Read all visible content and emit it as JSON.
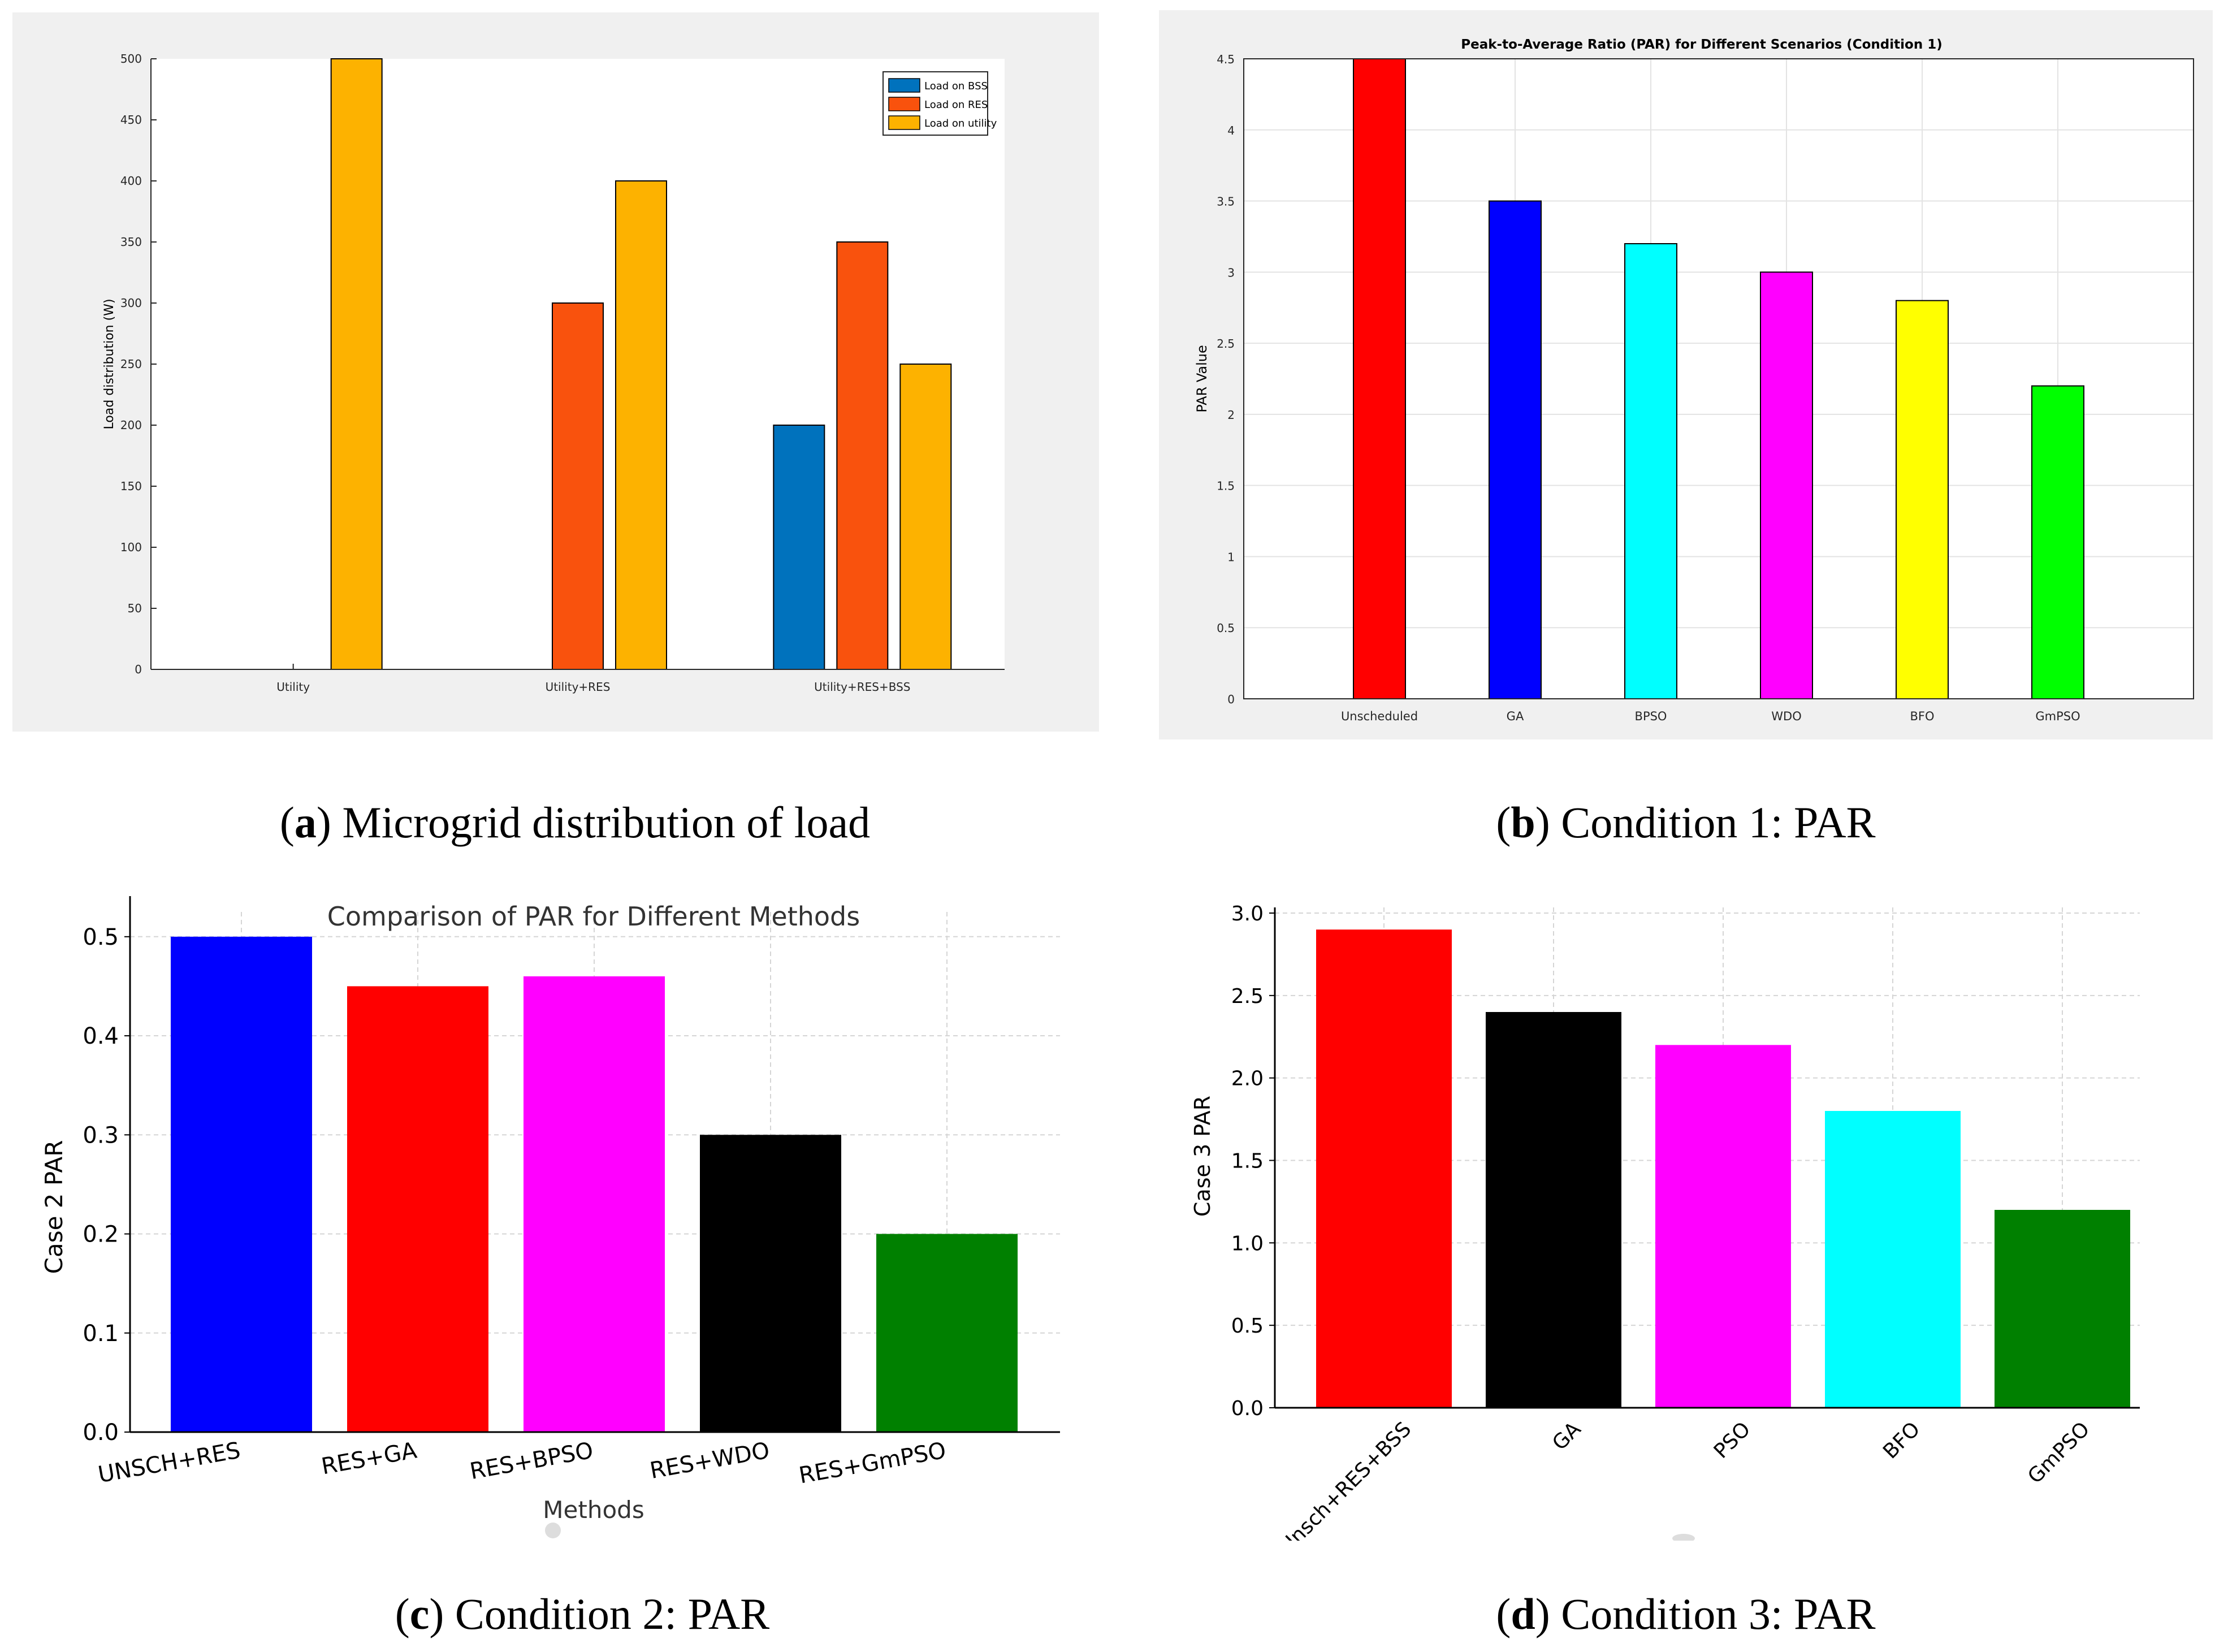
{
  "chart_data": [
    {
      "id": "a",
      "type": "bar",
      "title": "",
      "xlabel": "",
      "ylabel": "Load distribution (W)",
      "categories": [
        "Utility",
        "Utility+RES",
        "Utility+RES+BSS"
      ],
      "series": [
        {
          "name": "Load on BSS",
          "color": "#0072BD",
          "values": [
            0,
            0,
            200
          ]
        },
        {
          "name": "Load on RES",
          "color": "#F9520D",
          "values": [
            0,
            300,
            350
          ]
        },
        {
          "name": "Load on utility",
          "color": "#FDB200",
          "values": [
            500,
            400,
            250
          ]
        }
      ],
      "ylim": [
        0,
        500
      ],
      "yticks": [
        "0",
        "50",
        "100",
        "150",
        "200",
        "250",
        "300",
        "350",
        "400",
        "450",
        "500"
      ],
      "legend": "top-right",
      "grid": false
    },
    {
      "id": "b",
      "type": "bar",
      "title": "Peak-to-Average Ratio (PAR) for Different Scenarios (Condition 1)",
      "xlabel": "",
      "ylabel": "PAR Value",
      "categories": [
        "Unscheduled",
        "GA",
        "BPSO",
        "WDO",
        "BFO",
        "GmPSO"
      ],
      "values": [
        4.5,
        3.5,
        3.2,
        3.0,
        2.8,
        2.2
      ],
      "colors": [
        "#FF0000",
        "#0000FF",
        "#00FFFF",
        "#FF00FF",
        "#FFFF00",
        "#00FF00"
      ],
      "ylim": [
        0,
        4.5
      ],
      "yticks": [
        "0",
        "0.5",
        "1",
        "1.5",
        "2",
        "2.5",
        "3",
        "3.5",
        "4",
        "4.5"
      ],
      "grid": true
    },
    {
      "id": "c",
      "type": "bar",
      "title": "Comparison of PAR for Different Methods",
      "xlabel": "Methods",
      "ylabel": "Case 2 PAR",
      "categories": [
        "UNSCH+RES",
        "RES+GA",
        "RES+BPSO",
        "RES+WDO",
        "RES+GmPSO"
      ],
      "values": [
        0.5,
        0.45,
        0.46,
        0.3,
        0.2
      ],
      "colors": [
        "#0000FF",
        "#FF0000",
        "#FF00FF",
        "#000000",
        "#008000"
      ],
      "ylim": [
        0,
        0.5
      ],
      "yticks": [
        "0.0",
        "0.1",
        "0.2",
        "0.3",
        "0.4",
        "0.5"
      ],
      "grid": true
    },
    {
      "id": "d",
      "type": "bar",
      "title": "",
      "xlabel": "",
      "ylabel": "Case 3 PAR",
      "categories": [
        "Unsch+RES+BSS",
        "GA",
        "PSO",
        "BFO",
        "GmPSO"
      ],
      "values": [
        2.9,
        2.4,
        2.2,
        1.8,
        1.2
      ],
      "colors": [
        "#FF0000",
        "#000000",
        "#FF00FF",
        "#00FFFF",
        "#008000"
      ],
      "ylim": [
        0,
        3.0
      ],
      "yticks": [
        "0.0",
        "0.5",
        "1.0",
        "1.5",
        "2.0",
        "2.5",
        "3.0"
      ],
      "grid": true
    }
  ],
  "captions": {
    "a": {
      "letter": "a",
      "text": "Microgrid distribution of load"
    },
    "b": {
      "letter": "b",
      "text": "Condition 1: PAR"
    },
    "c": {
      "letter": "c",
      "text": "Condition 2: PAR"
    },
    "d": {
      "letter": "d",
      "text": "Condition 3: PAR"
    }
  }
}
